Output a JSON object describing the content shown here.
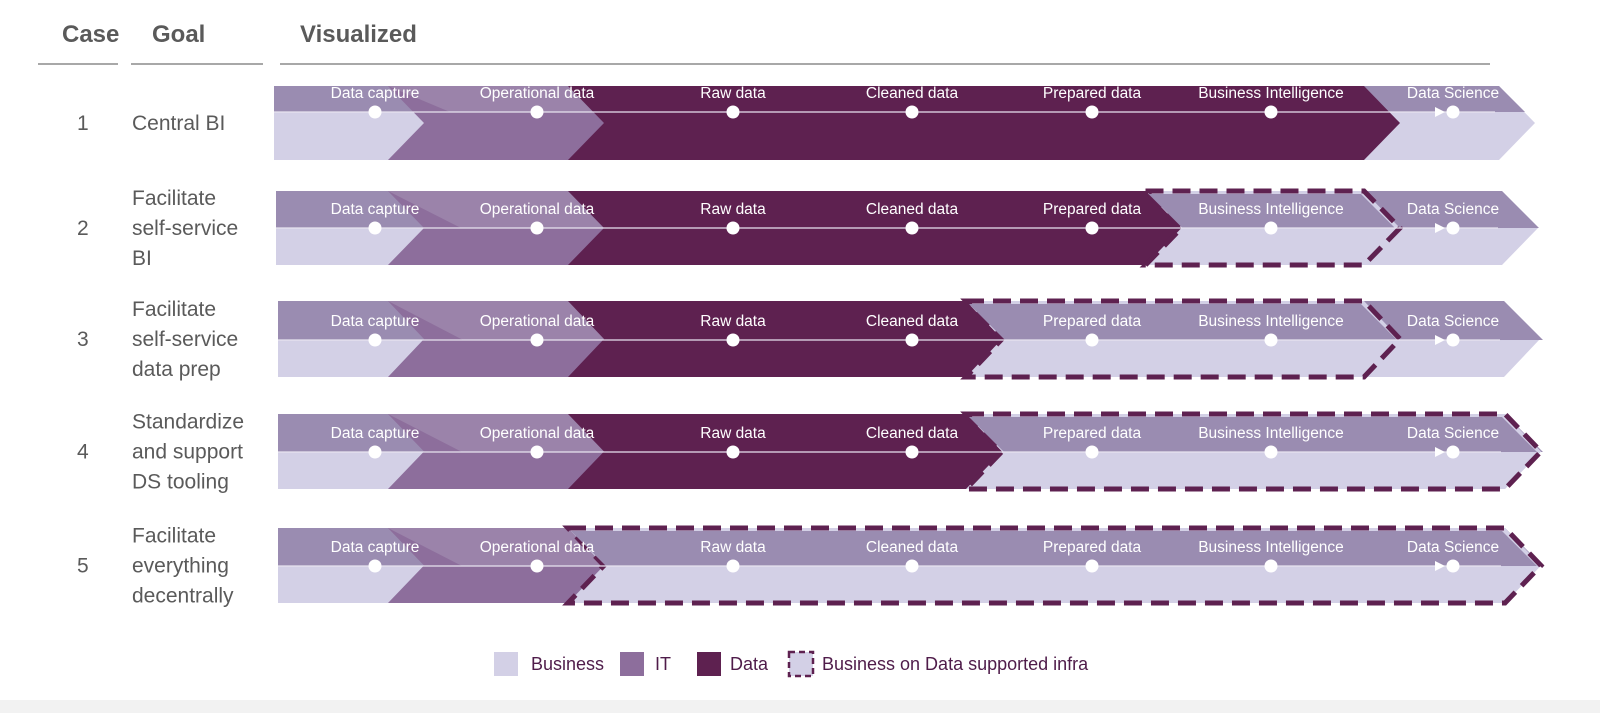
{
  "headers": {
    "case": "Case",
    "goal": "Goal",
    "visualized": "Visualized"
  },
  "stages": [
    "Data capture",
    "Operational data",
    "Raw data",
    "Cleaned data",
    "Prepared data",
    "Business Intelligence",
    "Data Science"
  ],
  "colors": {
    "business": "#d3d0e6",
    "business_top": "#9a8cb1",
    "it": "#8d6e9c",
    "it_top": "#9b83aa",
    "data": "#5e2150",
    "dashed": "#5e2150",
    "line": "#c7c2d8",
    "text_dark": "#5a5a5a",
    "legend_text": "#4f1c4a"
  },
  "cases": [
    {
      "num": "1",
      "goal": [
        "Central BI"
      ],
      "data_range": [
        2,
        5
      ],
      "dashed_range": null
    },
    {
      "num": "2",
      "goal": [
        "Facilitate",
        "self-service",
        "BI"
      ],
      "data_range": [
        2,
        4
      ],
      "dashed_range": [
        5,
        5
      ]
    },
    {
      "num": "3",
      "goal": [
        "Facilitate",
        "self-service",
        "data prep"
      ],
      "data_range": [
        2,
        3
      ],
      "dashed_range": [
        4,
        5
      ]
    },
    {
      "num": "4",
      "goal": [
        "Standardize",
        "and support",
        "DS tooling"
      ],
      "data_range": [
        2,
        3
      ],
      "dashed_range": [
        4,
        6
      ]
    },
    {
      "num": "5",
      "goal": [
        "Facilitate",
        "everything",
        "decentrally"
      ],
      "data_range": null,
      "dashed_range": [
        2,
        6
      ]
    }
  ],
  "legend": [
    {
      "key": "business",
      "label": "Business"
    },
    {
      "key": "it",
      "label": "IT"
    },
    {
      "key": "data",
      "label": "Data"
    },
    {
      "key": "dashed",
      "label": "Business on Data supported infra"
    }
  ]
}
